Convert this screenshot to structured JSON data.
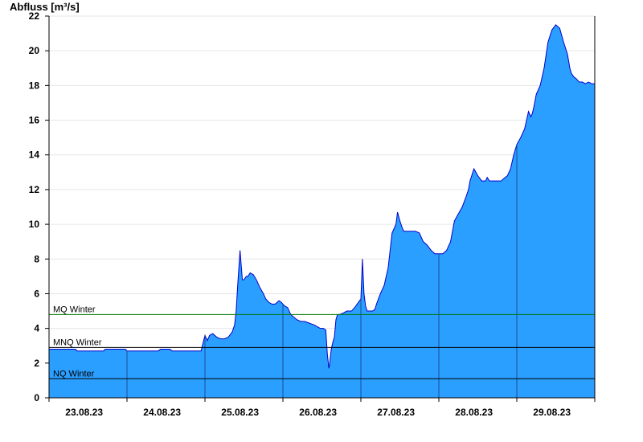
{
  "chart_data": {
    "type": "area",
    "ylabel": "Abfluss [m³/s]",
    "ylim": [
      0,
      22
    ],
    "yticks": [
      0,
      2,
      4,
      6,
      8,
      10,
      12,
      14,
      16,
      18,
      20,
      22
    ],
    "xlim": [
      0,
      7
    ],
    "day_labels": [
      "23.08.23",
      "24.08.23",
      "25.08.23",
      "26.08.23",
      "27.08.23",
      "28.08.23",
      "29.08.23"
    ],
    "grid": true,
    "colors": {
      "fill": "#2b9fff",
      "line": "#0000cc",
      "mq": "#007700",
      "ref": "#000000",
      "day_divider": "#1a4c99"
    },
    "reference_lines": [
      {
        "label": "MQ Winter",
        "value": 4.8,
        "color": "#007700"
      },
      {
        "label": "MNQ Winter",
        "value": 2.9,
        "color": "#000000"
      },
      {
        "label": "NQ Winter",
        "value": 1.1,
        "color": "#000000"
      }
    ],
    "series": [
      {
        "x": [
          0,
          0.34,
          0.36,
          0.7,
          0.72,
          0.98,
          1.0,
          1.4,
          1.43,
          1.55,
          1.58,
          1.9,
          1.95,
          2.0,
          2.03,
          2.06,
          2.1,
          2.15,
          2.2,
          2.25,
          2.3,
          2.35,
          2.38,
          2.4,
          2.42,
          2.45,
          2.48,
          2.5,
          2.53,
          2.55,
          2.58,
          2.62,
          2.66,
          2.7,
          2.75,
          2.78,
          2.82,
          2.86,
          2.9,
          2.95,
          2.98,
          3.02,
          3.06,
          3.1,
          3.18,
          3.23,
          3.28,
          3.4,
          3.48,
          3.52,
          3.55,
          3.57,
          3.59,
          3.6,
          3.62,
          3.64,
          3.66,
          3.68,
          3.7,
          3.73,
          3.78,
          3.82,
          3.88,
          3.92,
          4.0,
          4.02,
          4.04,
          4.06,
          4.08,
          4.1,
          4.13,
          4.15,
          4.18,
          4.2,
          4.25,
          4.3,
          4.35,
          4.4,
          4.45,
          4.47,
          4.5,
          4.53,
          4.55,
          4.58,
          4.6,
          4.65,
          4.7,
          4.75,
          4.8,
          4.85,
          4.9,
          4.95,
          5.0,
          5.05,
          5.1,
          5.15,
          5.2,
          5.25,
          5.3,
          5.35,
          5.38,
          5.4,
          5.45,
          5.5,
          5.55,
          5.58,
          5.6,
          5.62,
          5.65,
          5.68,
          5.72,
          5.76,
          5.8,
          5.85,
          5.88,
          5.92,
          5.96,
          6.0,
          6.05,
          6.1,
          6.15,
          6.18,
          6.2,
          6.22,
          6.25,
          6.28,
          6.3,
          6.35,
          6.4,
          6.45,
          6.5,
          6.55,
          6.6,
          6.65,
          6.68,
          6.7,
          6.73,
          6.76,
          6.8,
          6.84,
          6.88,
          6.92,
          6.96,
          7.0
        ],
        "y": [
          2.8,
          2.8,
          2.7,
          2.7,
          2.8,
          2.8,
          2.7,
          2.7,
          2.8,
          2.8,
          2.7,
          2.7,
          2.7,
          3.6,
          3.3,
          3.6,
          3.7,
          3.5,
          3.4,
          3.4,
          3.5,
          3.8,
          4.2,
          5.0,
          6.5,
          8.5,
          6.8,
          6.8,
          7.0,
          7.0,
          7.2,
          7.1,
          6.8,
          6.4,
          6.0,
          5.7,
          5.5,
          5.4,
          5.4,
          5.6,
          5.5,
          5.3,
          5.2,
          4.8,
          4.5,
          4.4,
          4.4,
          4.2,
          4.0,
          4.0,
          3.9,
          2.5,
          1.7,
          2.0,
          2.8,
          3.2,
          3.5,
          4.5,
          4.8,
          4.8,
          4.9,
          5.0,
          5.0,
          5.2,
          5.7,
          8.0,
          6.0,
          5.3,
          5.0,
          5.0,
          5.0,
          5.0,
          5.1,
          5.4,
          6.0,
          6.5,
          7.5,
          9.5,
          10.0,
          10.7,
          10.2,
          9.8,
          9.6,
          9.6,
          9.6,
          9.6,
          9.6,
          9.5,
          9.0,
          8.8,
          8.5,
          8.3,
          8.3,
          8.3,
          8.5,
          9.0,
          10.2,
          10.6,
          11.0,
          11.6,
          12.0,
          12.5,
          13.2,
          12.8,
          12.5,
          12.5,
          12.5,
          12.7,
          12.5,
          12.5,
          12.5,
          12.5,
          12.5,
          12.7,
          12.8,
          13.2,
          14.0,
          14.6,
          15.0,
          15.5,
          16.5,
          16.2,
          16.4,
          16.8,
          17.5,
          17.8,
          18.0,
          19.0,
          20.5,
          21.2,
          21.5,
          21.3,
          20.5,
          19.8,
          19.0,
          18.7,
          18.5,
          18.4,
          18.2,
          18.2,
          18.1,
          18.2,
          18.1,
          18.1
        ]
      }
    ]
  }
}
